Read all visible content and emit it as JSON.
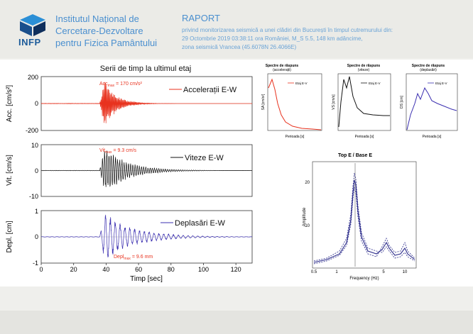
{
  "header": {
    "logo_text": "INFP",
    "institute": [
      "Institutul Național de",
      "Cercetare-Dezvoltare",
      "pentru Fizica Pamântului"
    ],
    "report_title": "RAPORT",
    "report_lines": [
      "privind monitorizarea seismică a unei clădiri din București în timpul cutremurului din:",
      "29 Octombrie 2019 03:38:11 ora României, M_S 5.5, 148 km adâncime,",
      "zona seismică Vrancea (45.6078N 26.4066E)"
    ]
  },
  "chart_data": [
    {
      "type": "line",
      "title": "Serii de timp la ultimul etaj",
      "ylabel": "Acc. [cm/s²]",
      "ylim": [
        -200,
        200
      ],
      "yticks": [
        "200",
        "0",
        "-200"
      ],
      "series": [
        {
          "name": "Accelerații E-W",
          "color": "#e8321e"
        }
      ],
      "peak": {
        "label": "Acc",
        "sub": "max",
        "text": "= 170 cm/s²",
        "value": 170,
        "t": 38
      }
    },
    {
      "type": "line",
      "ylabel": "Vit. [cm/s]",
      "ylim": [
        -10,
        10
      ],
      "yticks": [
        "10",
        "0",
        "-10"
      ],
      "series": [
        {
          "name": "Viteze E-W",
          "color": "#111111"
        }
      ],
      "peak": {
        "label": "Vit",
        "sub": "max",
        "text": "= 9.3 cm/s",
        "value": 9.3,
        "t": 38
      }
    },
    {
      "type": "line",
      "ylabel": "Depl. [cm]",
      "xlabel": "Timp [sec]",
      "xlim": [
        0,
        130
      ],
      "xticks": [
        "0",
        "20",
        "40",
        "60",
        "80",
        "100",
        "120"
      ],
      "ylim": [
        -1,
        1
      ],
      "yticks": [
        "1",
        "0",
        "-1"
      ],
      "series": [
        {
          "name": "Deplasări E-W",
          "color": "#3b2fb0"
        }
      ],
      "peak": {
        "label": "Depl",
        "sub": "max",
        "text": "= 9.6 mm",
        "value": 0.96,
        "t": 40
      }
    },
    {
      "type": "line",
      "title": "Spectre de răspuns",
      "subtitle": "(accelerații)",
      "ylabel": "SA [cm/s²]",
      "xlabel": "Perioada [s]",
      "series": [
        {
          "name": "Etaj E-V",
          "color": "#e8321e"
        }
      ]
    },
    {
      "type": "line",
      "title": "Spectre de răspuns",
      "subtitle": "(viteze)",
      "ylabel": "VS [cm/s]",
      "xlabel": "Perioada [s]",
      "series": [
        {
          "name": "Etaj E-V",
          "color": "#111111"
        }
      ]
    },
    {
      "type": "line",
      "title": "Spectre de răspuns",
      "subtitle": "(deplasări)",
      "ylabel": "DS [cm]",
      "xlabel": "Perioada [s]",
      "series": [
        {
          "name": "Etaj E-V",
          "color": "#3b2fb0"
        }
      ]
    },
    {
      "type": "line",
      "title": "Top E / Base E",
      "ylabel": "Amplitude",
      "xlabel": "Frequency (Hz)",
      "yticks": [
        "20",
        "10"
      ],
      "xticks": [
        "0.5",
        "1",
        "5",
        "10"
      ],
      "series": [
        {
          "name": "",
          "color": "#2a2a8a"
        }
      ]
    }
  ]
}
